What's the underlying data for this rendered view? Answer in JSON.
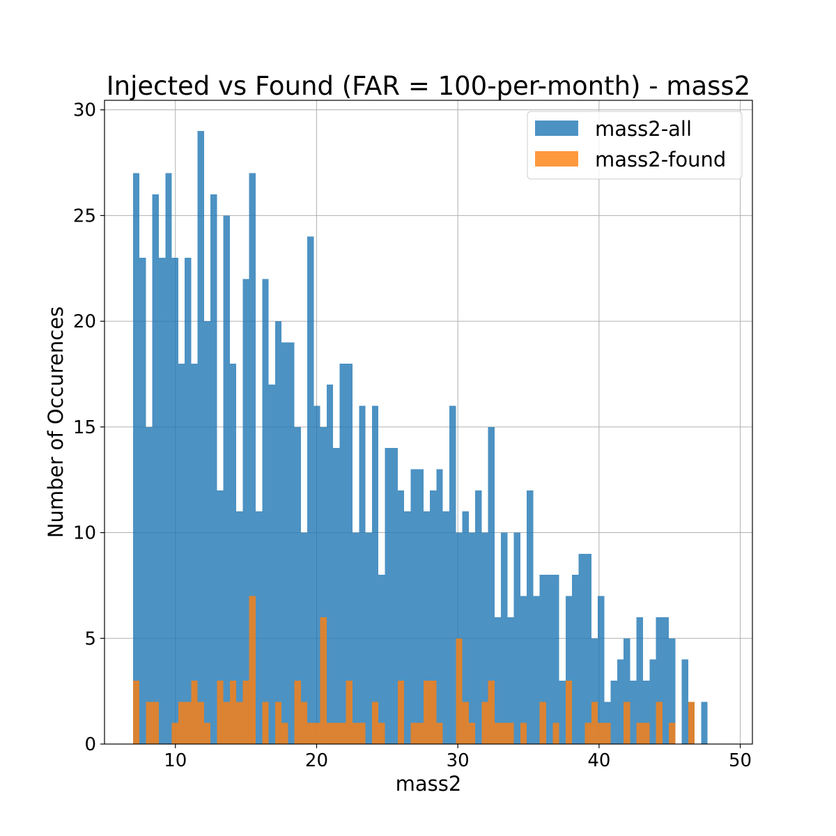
{
  "chart_data": {
    "type": "bar",
    "title": "Injected vs Found (FAR = 100-per-month) - mass2",
    "xlabel": "mass2",
    "ylabel": "Number of Occurences",
    "xlim": [
      4.98,
      50.86
    ],
    "ylim": [
      0,
      30.45
    ],
    "xticks": [
      10,
      20,
      30,
      40,
      50
    ],
    "yticks": [
      0,
      5,
      10,
      15,
      20,
      25,
      30
    ],
    "grid": true,
    "legend_position": "top-right",
    "bin_range": [
      7.0,
      48.6
    ],
    "series": [
      {
        "name": "mass2-all",
        "color": "#1f77b4",
        "opacity": 0.8,
        "values": [
          27,
          23,
          15,
          26,
          23,
          27,
          23,
          18,
          23,
          18,
          29,
          20,
          26,
          12,
          25,
          18,
          11,
          22,
          27,
          11,
          22,
          17,
          20,
          19,
          19,
          15,
          10,
          24,
          16,
          15,
          17,
          14,
          18,
          18,
          10,
          16,
          10,
          16,
          8,
          14,
          14,
          12,
          11,
          13,
          13,
          11,
          12,
          13,
          11,
          16,
          10,
          11,
          10,
          12,
          10,
          15,
          6,
          10,
          6,
          10,
          7,
          12,
          7,
          8,
          8,
          8,
          3,
          7,
          8,
          9,
          9,
          5,
          7,
          2,
          3,
          4,
          5,
          3,
          6,
          3,
          4,
          6,
          6,
          5,
          0,
          4,
          2,
          0,
          2,
          0,
          0
        ]
      },
      {
        "name": "mass2-found",
        "color": "#ff7f0e",
        "opacity": 0.8,
        "values": [
          3,
          0,
          2,
          2,
          0,
          0,
          1,
          2,
          2,
          3,
          2,
          1,
          0,
          3,
          2,
          3,
          2,
          3,
          7,
          0,
          2,
          0,
          2,
          1,
          0,
          3,
          2,
          1,
          1,
          6,
          1,
          1,
          1,
          3,
          1,
          1,
          0,
          2,
          1,
          0,
          0,
          3,
          0,
          1,
          1,
          3,
          3,
          1,
          0,
          0,
          5,
          2,
          1,
          0,
          2,
          3,
          1,
          1,
          1,
          0,
          1,
          0,
          0,
          2,
          0,
          1,
          0,
          3,
          0,
          0,
          1,
          2,
          1,
          1,
          0,
          0,
          2,
          0,
          1,
          1,
          0,
          2,
          0,
          1,
          0,
          0,
          2,
          0,
          0,
          0,
          0
        ]
      }
    ]
  }
}
